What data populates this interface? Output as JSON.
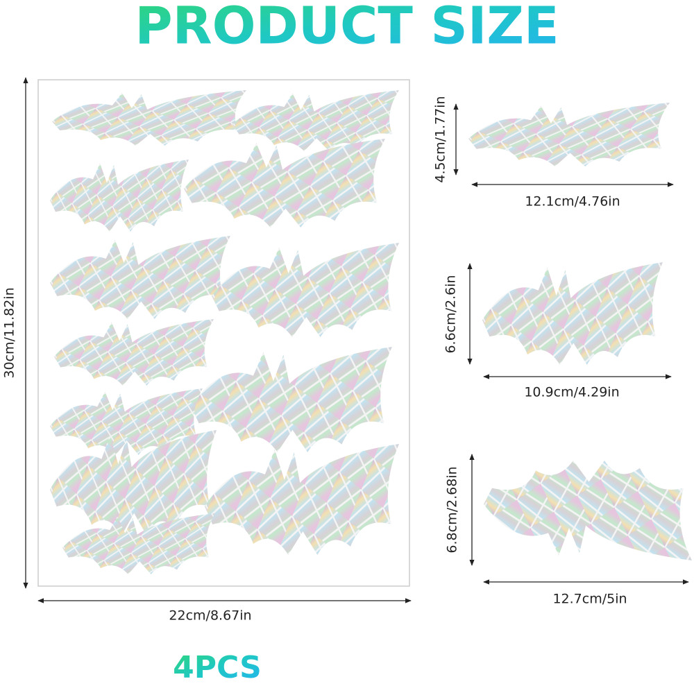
{
  "header": {
    "title": "PRODUCT SIZE"
  },
  "sheet": {
    "height_label": "30cm/11.82in",
    "width_label": "22cm/8.67in"
  },
  "sizes": [
    {
      "height_label": "4.5cm/1.77in",
      "width_label": "12.1cm/4.76in"
    },
    {
      "height_label": "6.6cm/2.6in",
      "width_label": "10.9cm/4.29in"
    },
    {
      "height_label": "6.8cm/2.68in",
      "width_label": "12.7cm/5in"
    }
  ],
  "footer": {
    "quantity": "4PCS"
  }
}
